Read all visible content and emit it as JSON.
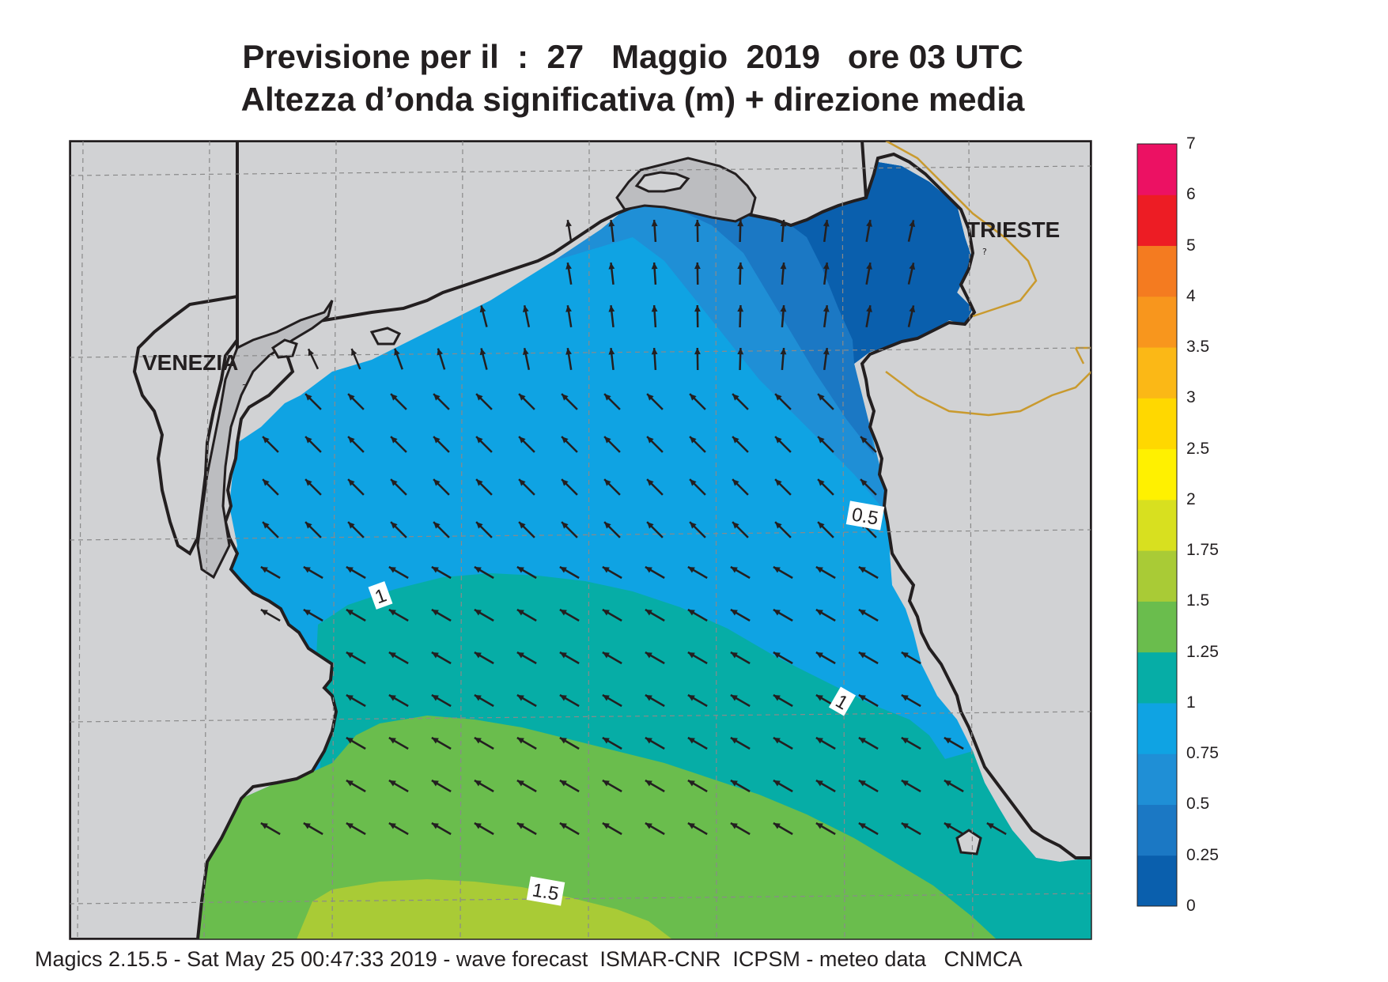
{
  "title": {
    "line1": "Previsione per il  :  27   Maggio  2019   ore 03 UTC",
    "line2": "Altezza d’onda significativa (m) + direzione media"
  },
  "cities": [
    {
      "name": "VENEZIA"
    },
    {
      "name": "TRIESTE"
    }
  ],
  "contour_labels": [
    "0.5",
    "1",
    "1",
    "1.5"
  ],
  "colorbar": {
    "ticks": [
      "0",
      "0.25",
      "0.5",
      "0.75",
      "1",
      "1.25",
      "1.5",
      "1.75",
      "2",
      "2.5",
      "3",
      "3.5",
      "4",
      "5",
      "6",
      "7"
    ],
    "colors": [
      "#0a5fad",
      "#1b78c4",
      "#1f8fd6",
      "#0fa3e3",
      "#06ada6",
      "#6abd4d",
      "#a9cb36",
      "#d8e01f",
      "#fff100",
      "#ffd800",
      "#fbb816",
      "#f8961d",
      "#f47b20",
      "#ed1c24",
      "#ec1163"
    ]
  },
  "legend": {
    "colors": {
      "land": "#d1d2d4",
      "land_dark": "#bcbdc0",
      "border": "#c99a2e",
      "arrow": "#231f20",
      "background": "#ffffff"
    }
  },
  "footer": {
    "text": "Magics 2.15.5 - Sat May 25 00:47:33 2019 - wave forecast  ISMAR-CNR  ICPSM - meteo data   CNMCA"
  }
}
